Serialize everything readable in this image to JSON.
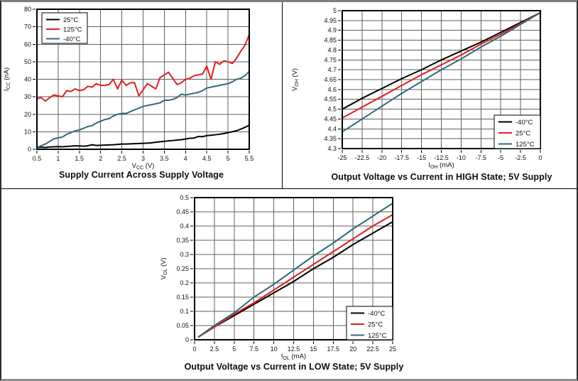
{
  "page": {
    "background": "#ffffff"
  },
  "colors": {
    "black": "#000000",
    "red": "#df2020",
    "teal": "#31697a",
    "grid": "#5f5f5f",
    "plot_border": "#000000",
    "text": "#111111"
  },
  "chart_data": [
    {
      "type": "line",
      "title": "Supply Current Across Supply Voltage",
      "xlabel": {
        "base": "V",
        "sub": "CC",
        "rest": " (V)"
      },
      "ylabel": {
        "base": "I",
        "sub": "CC",
        "rest": " (nA)"
      },
      "xlim": [
        0.5,
        5.5
      ],
      "ylim": [
        0,
        80
      ],
      "xticks": [
        0.5,
        1,
        1.5,
        2,
        2.5,
        3,
        3.5,
        4,
        4.5,
        5,
        5.5
      ],
      "yticks": [
        0,
        10,
        20,
        30,
        40,
        50,
        60,
        70,
        80
      ],
      "grid": true,
      "legend_position": "top-left",
      "x": [
        0.5,
        0.6,
        0.7,
        0.8,
        0.9,
        1.0,
        1.1,
        1.2,
        1.3,
        1.4,
        1.5,
        1.6,
        1.7,
        1.8,
        1.9,
        2.0,
        2.1,
        2.2,
        2.3,
        2.4,
        2.5,
        2.6,
        2.7,
        2.8,
        2.9,
        3.0,
        3.1,
        3.2,
        3.3,
        3.4,
        3.5,
        3.6,
        3.7,
        3.8,
        3.9,
        4.0,
        4.1,
        4.2,
        4.3,
        4.4,
        4.5,
        4.6,
        4.7,
        4.8,
        4.9,
        5.0,
        5.1,
        5.2,
        5.3,
        5.4,
        5.5
      ],
      "series": [
        {
          "name": "25°C",
          "color_key": "black",
          "y": [
            1.0,
            1.2,
            1.0,
            1.3,
            1.4,
            1.5,
            1.4,
            1.6,
            1.8,
            2.0,
            1.9,
            1.8,
            2.0,
            2.6,
            2.2,
            2.3,
            2.4,
            2.5,
            2.6,
            2.8,
            3.0,
            3.0,
            3.1,
            3.2,
            3.3,
            3.4,
            3.5,
            3.7,
            4.0,
            4.3,
            4.5,
            4.8,
            5.0,
            5.3,
            5.5,
            5.9,
            6.3,
            6.4,
            7.3,
            7.2,
            7.8,
            8.0,
            8.3,
            8.6,
            9.0,
            9.5,
            10.0,
            10.6,
            11.5,
            12.5,
            13.8
          ]
        },
        {
          "name": "125°C",
          "color_key": "red",
          "y": [
            29,
            29.5,
            27.5,
            29.5,
            31,
            30.5,
            30,
            33.5,
            33,
            34.5,
            33.5,
            34,
            36,
            35.5,
            37.5,
            36.5,
            36.5,
            37,
            40,
            34.5,
            39.5,
            36.5,
            38,
            38,
            30.5,
            34,
            37.5,
            36,
            34.5,
            41,
            42.5,
            44,
            40.5,
            37,
            38,
            40,
            40.5,
            42,
            42.5,
            43,
            47.5,
            40,
            50,
            48.5,
            50.5,
            50,
            49,
            52,
            56,
            59.5,
            65.5
          ]
        },
        {
          "name": "-40°C",
          "color_key": "teal",
          "y": [
            1,
            2,
            3,
            4.5,
            6,
            6.5,
            7,
            8.5,
            9.5,
            10.5,
            11,
            12,
            13,
            13.5,
            15,
            16,
            17,
            17.5,
            19,
            20,
            20.5,
            20.5,
            21.5,
            22.5,
            23.5,
            24.5,
            25,
            25.5,
            26,
            26.5,
            28,
            28,
            28.5,
            29.5,
            31.5,
            31,
            31.5,
            32,
            32.5,
            33.5,
            35,
            35.5,
            36,
            36.5,
            37,
            37.5,
            38.5,
            40,
            40.5,
            42,
            44.5
          ]
        }
      ]
    },
    {
      "type": "line",
      "title": "Output Voltage vs Current in HIGH State; 5V Supply",
      "xlabel": {
        "base": "I",
        "sub": "OH",
        "rest": " (mA)"
      },
      "ylabel": {
        "base": "V",
        "sub": "OH",
        "rest": " (V)"
      },
      "xlim": [
        -25,
        0
      ],
      "ylim": [
        4.3,
        5
      ],
      "xticks": [
        -25,
        -22.5,
        -20,
        -17.5,
        -15,
        -12.5,
        -10,
        -7.5,
        -5,
        -2.5,
        0
      ],
      "yticks": [
        4.3,
        4.35,
        4.4,
        4.45,
        4.5,
        4.55,
        4.6,
        4.65,
        4.7,
        4.75,
        4.8,
        4.85,
        4.9,
        4.95,
        5
      ],
      "grid": true,
      "legend_position": "bottom-right",
      "x": [
        -25,
        -22.5,
        -20,
        -17.5,
        -15,
        -12.5,
        -10,
        -7.5,
        -5,
        -2.5,
        0
      ],
      "series": [
        {
          "name": "-40°C",
          "color_key": "black",
          "y": [
            4.5,
            4.555,
            4.605,
            4.655,
            4.7,
            4.75,
            4.795,
            4.84,
            4.89,
            4.94,
            4.99
          ]
        },
        {
          "name": "25°C",
          "color_key": "red",
          "y": [
            4.455,
            4.51,
            4.565,
            4.62,
            4.675,
            4.725,
            4.775,
            4.83,
            4.88,
            4.935,
            4.99
          ]
        },
        {
          "name": "125°C",
          "color_key": "teal",
          "y": [
            4.385,
            4.45,
            4.515,
            4.58,
            4.64,
            4.7,
            4.755,
            4.815,
            4.87,
            4.93,
            4.99
          ]
        }
      ]
    },
    {
      "type": "line",
      "title": "Output Voltage vs Current in LOW State; 5V Supply",
      "xlabel": {
        "base": "I",
        "sub": "OL",
        "rest": " (mA)"
      },
      "ylabel": {
        "base": "V",
        "sub": "OL",
        "rest": " (V)"
      },
      "xlim": [
        0,
        25
      ],
      "ylim": [
        0,
        0.5
      ],
      "xticks": [
        0,
        2.5,
        5,
        7.5,
        10,
        12.5,
        15,
        17.5,
        20,
        22.5,
        25
      ],
      "yticks": [
        0,
        0.05,
        0.1,
        0.15,
        0.2,
        0.25,
        0.3,
        0.35,
        0.4,
        0.45,
        0.5
      ],
      "grid": true,
      "legend_position": "bottom-right",
      "x": [
        0.5,
        2.5,
        5,
        7.5,
        10,
        12.5,
        15,
        17.5,
        20,
        22.5,
        25
      ],
      "series": [
        {
          "name": "-40°C",
          "color_key": "black",
          "y": [
            0.01,
            0.045,
            0.085,
            0.125,
            0.165,
            0.205,
            0.25,
            0.29,
            0.335,
            0.375,
            0.415
          ]
        },
        {
          "name": "25°C",
          "color_key": "red",
          "y": [
            0.01,
            0.045,
            0.09,
            0.13,
            0.175,
            0.22,
            0.265,
            0.31,
            0.355,
            0.4,
            0.44
          ]
        },
        {
          "name": "125°C",
          "color_key": "teal",
          "y": [
            0.01,
            0.05,
            0.095,
            0.15,
            0.195,
            0.245,
            0.295,
            0.34,
            0.39,
            0.435,
            0.48
          ]
        }
      ]
    }
  ]
}
